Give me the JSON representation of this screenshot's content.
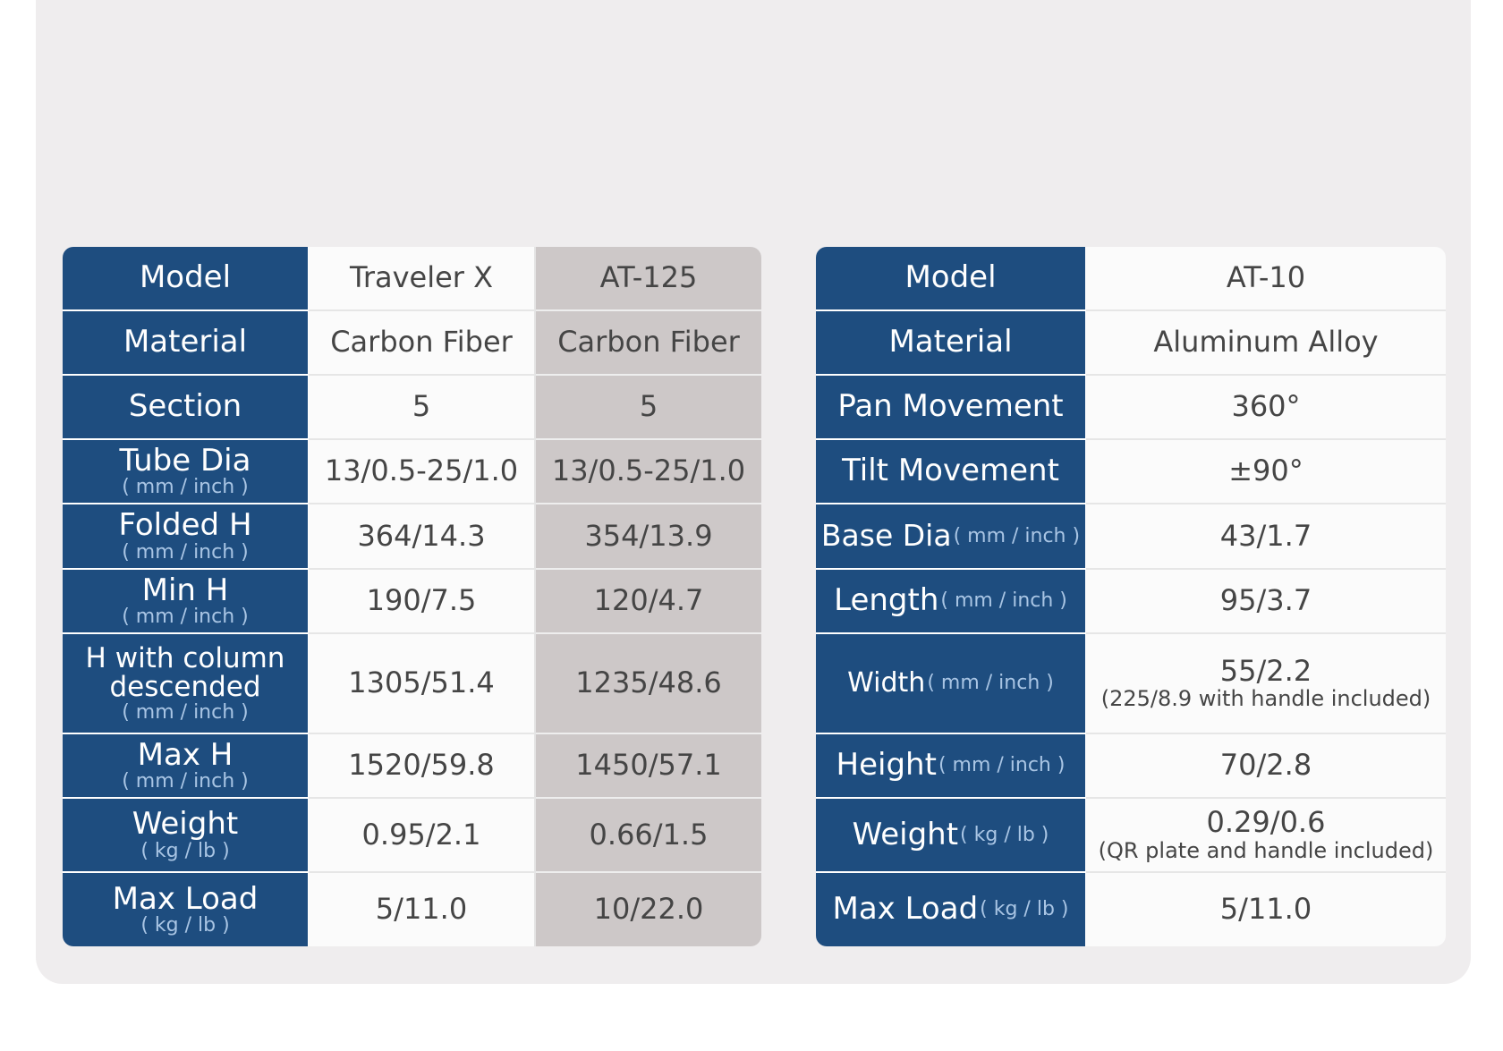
{
  "left_table": {
    "rows": [
      {
        "label": "Model",
        "unit": "",
        "traveler_x": "Traveler X",
        "at125": "AT-125"
      },
      {
        "label": "Material",
        "unit": "",
        "traveler_x": "Carbon Fiber",
        "at125": "Carbon Fiber"
      },
      {
        "label": "Section",
        "unit": "",
        "traveler_x": "5",
        "at125": "5"
      },
      {
        "label": "Tube Dia",
        "unit": "( mm / inch )",
        "traveler_x": "13/0.5-25/1.0",
        "at125": "13/0.5-25/1.0"
      },
      {
        "label": "Folded H",
        "unit": "( mm / inch )",
        "traveler_x": "364/14.3",
        "at125": "354/13.9"
      },
      {
        "label": "Min H",
        "unit": "( mm / inch )",
        "traveler_x": "190/7.5",
        "at125": "120/4.7"
      },
      {
        "label_line1": "H with column",
        "label_line2": "descended",
        "unit": "( mm / inch )",
        "traveler_x": "1305/51.4",
        "at125": "1235/48.6"
      },
      {
        "label": "Max H",
        "unit": "( mm / inch )",
        "traveler_x": "1520/59.8",
        "at125": "1450/57.1"
      },
      {
        "label": "Weight",
        "unit": "( kg / lb )",
        "traveler_x": "0.95/2.1",
        "at125": "0.66/1.5"
      },
      {
        "label": "Max Load",
        "unit": "( kg / lb )",
        "traveler_x": "5/11.0",
        "at125": "10/22.0"
      }
    ]
  },
  "right_table": {
    "rows": [
      {
        "label": "Model",
        "unit": "",
        "value": "AT-10",
        "note": ""
      },
      {
        "label": "Material",
        "unit": "",
        "value": "Aluminum Alloy",
        "note": ""
      },
      {
        "label": "Pan Movement",
        "unit": "",
        "value": "360°",
        "note": ""
      },
      {
        "label": "Tilt Movement",
        "unit": "",
        "value": "±90°",
        "note": ""
      },
      {
        "label": "Base Dia",
        "unit": "( mm / inch )",
        "value": "43/1.7",
        "note": ""
      },
      {
        "label": "Length",
        "unit": "( mm / inch )",
        "value": "95/3.7",
        "note": ""
      },
      {
        "label": "Width",
        "unit": "( mm / inch )",
        "value": "55/2.2",
        "note": "(225/8.9 with handle included)"
      },
      {
        "label": "Height",
        "unit": "( mm / inch )",
        "value": "70/2.8",
        "note": ""
      },
      {
        "label": "Weight",
        "unit": " ( kg / lb )",
        "value": "0.29/0.6",
        "note": "(QR plate and handle included)"
      },
      {
        "label": "Max Load",
        "unit": "( kg / lb )",
        "value": "5/11.0",
        "note": ""
      }
    ]
  },
  "colors": {
    "header_blue": "#1e4d7f",
    "unit_blue": "#a9c5e4",
    "panel_gray": "#efedee",
    "column_gray": "#cdc8c8",
    "cell_white": "#fbfbfb",
    "text_dark": "#454545"
  }
}
